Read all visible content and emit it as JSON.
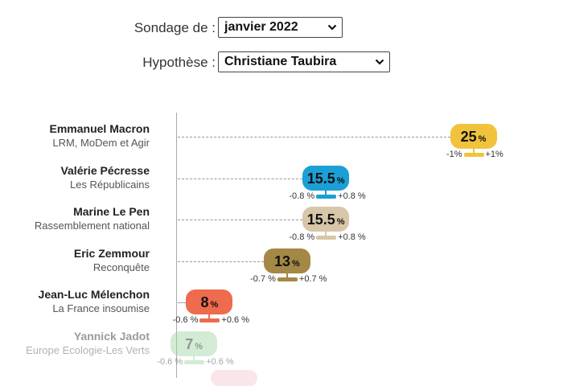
{
  "controls": {
    "survey": {
      "label": "Sondage de :",
      "value": "janvier 2022"
    },
    "hypothesis": {
      "label": "Hypothèse :",
      "value": "Christiane Taubira"
    }
  },
  "candidates": [
    {
      "name": "Emmanuel Macron",
      "party": "LRM, MoDem et Agir",
      "value": "25",
      "unit": "%",
      "low": "-1%",
      "high": "+1%",
      "color": "#f1c33c",
      "dim": false
    },
    {
      "name": "Valérie Pécresse",
      "party": "Les Républicains",
      "value": "15.5",
      "unit": "%",
      "low": "-0.8 %",
      "high": "+0.8 %",
      "color": "#1c9fd6",
      "dim": false
    },
    {
      "name": "Marine Le Pen",
      "party": "Rassemblement national",
      "value": "15.5",
      "unit": "%",
      "low": "-0.8 %",
      "high": "+0.8 %",
      "color": "#d8c6a8",
      "dim": false
    },
    {
      "name": "Eric Zemmour",
      "party": "Reconquête",
      "value": "13",
      "unit": "%",
      "low": "-0.7 %",
      "high": "+0.7 %",
      "color": "#a48845",
      "dim": false
    },
    {
      "name": "Jean-Luc Mélenchon",
      "party": "La France insoumise",
      "value": "8",
      "unit": "%",
      "low": "-0.6 %",
      "high": "+0.6 %",
      "color": "#ee6b4d",
      "dim": false
    },
    {
      "name": "Yannick Jadot",
      "party": "Europe Ecologie-Les Verts",
      "value": "7",
      "unit": "%",
      "low": "-0.6 %",
      "high": "+0.6 %",
      "color": "#9ed3a3",
      "dim": true
    }
  ]
}
